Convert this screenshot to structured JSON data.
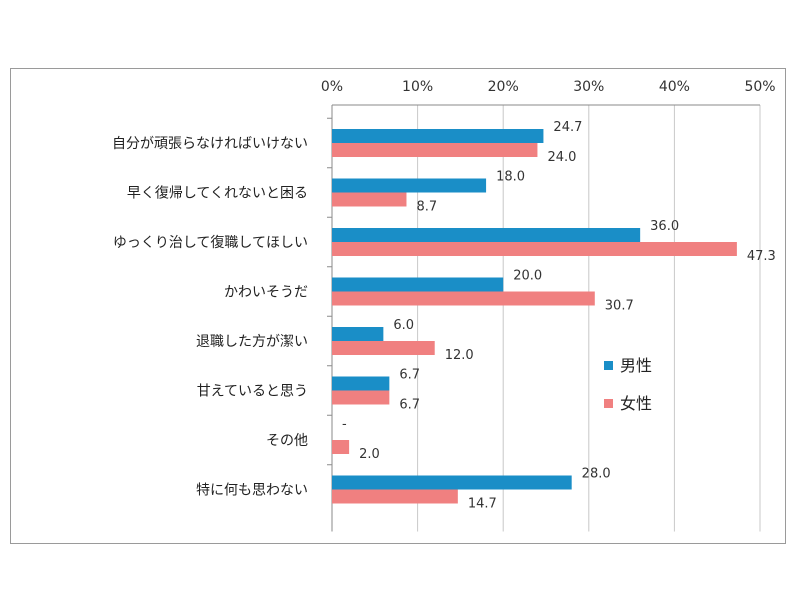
{
  "chart_data": {
    "type": "bar",
    "orientation": "horizontal",
    "categories": [
      "自分が頑張らなければいけない",
      "早く復帰してくれないと困る",
      "ゆっくり治して復職してほしい",
      "かわいそうだ",
      "退職した方が潔い",
      "甘えていると思う",
      "その他",
      "特に何も思わない"
    ],
    "series": [
      {
        "name": "男性",
        "color": "#1a8ec7",
        "values": [
          24.7,
          18.0,
          36.0,
          20.0,
          6.0,
          6.7,
          0,
          28.0
        ],
        "labels": [
          "24.7",
          "18.0",
          "36.0",
          "20.0",
          "6.0",
          "6.7",
          "-",
          "28.0"
        ]
      },
      {
        "name": "女性",
        "color": "#f08080",
        "values": [
          24.0,
          8.7,
          47.3,
          30.7,
          12.0,
          6.7,
          2.0,
          14.7
        ],
        "labels": [
          "24.0",
          "8.7",
          "47.3",
          "30.7",
          "12.0",
          "6.7",
          "2.0",
          "14.7"
        ]
      }
    ],
    "xlim": [
      0,
      50
    ],
    "xticks": [
      "0%",
      "10%",
      "20%",
      "30%",
      "40%",
      "50%"
    ],
    "xtick_values": [
      0,
      10,
      20,
      30,
      40,
      50
    ],
    "axis_position": "top",
    "grid": true,
    "legend": "right"
  }
}
